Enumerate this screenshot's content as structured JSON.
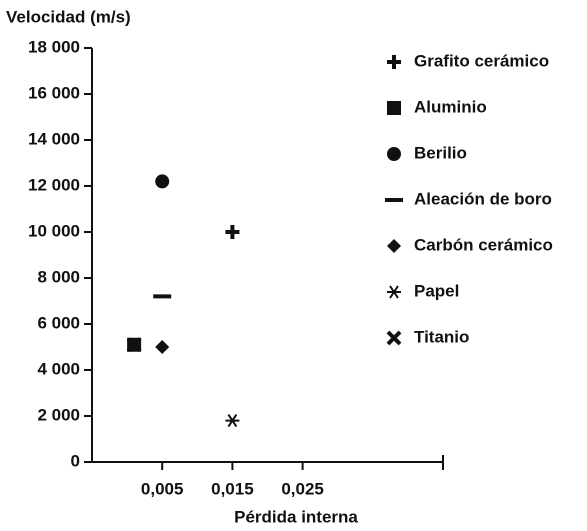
{
  "chart_data": {
    "type": "scatter",
    "y_label": "Velocidad (m/s)",
    "x_label": "Pérdida interna",
    "xlim": [
      -0.005,
      0.045
    ],
    "xticks": [
      {
        "value": 0.005,
        "label": "0,005"
      },
      {
        "value": 0.015,
        "label": "0,015"
      },
      {
        "value": 0.025,
        "label": "0,025"
      }
    ],
    "ylim": [
      0,
      18000
    ],
    "yticks": [
      0,
      {
        "value": 2000,
        "label": "2 000"
      },
      {
        "value": 4000,
        "label": "4 000"
      },
      {
        "value": 6000,
        "label": "6 000"
      },
      {
        "value": 8000,
        "label": "8 000"
      },
      {
        "value": 10000,
        "label": "10 000"
      },
      {
        "value": 12000,
        "label": "12 000"
      },
      {
        "value": 14000,
        "label": "14 000"
      },
      {
        "value": 16000,
        "label": "16 000"
      },
      {
        "value": 18000,
        "label": "18 000"
      }
    ],
    "legend": "right",
    "series": [
      {
        "name": "Grafito cerámico",
        "marker": "plus",
        "color": "#111111",
        "x": [
          0.015
        ],
        "values": [
          10000
        ]
      },
      {
        "name": "Aluminio",
        "marker": "square",
        "color": "#111111",
        "x": [
          0.001
        ],
        "values": [
          5100
        ]
      },
      {
        "name": "Berilio",
        "marker": "circle",
        "color": "#111111",
        "x": [
          0.005
        ],
        "values": [
          12200
        ]
      },
      {
        "name": "Aleación de boro",
        "marker": "dash",
        "color": "#111111",
        "x": [
          0.005
        ],
        "values": [
          7200
        ]
      },
      {
        "name": "Carbón cerámico",
        "marker": "diamond",
        "color": "#111111",
        "x": [
          0.005
        ],
        "values": [
          5000
        ]
      },
      {
        "name": "Papel",
        "marker": "asterisk",
        "color": "#111111",
        "x": [
          0.015
        ],
        "values": [
          1800
        ]
      },
      {
        "name": "Titanio",
        "marker": "cross",
        "color": "#111111",
        "x": [
          0.001
        ],
        "values": [
          5100
        ]
      }
    ]
  }
}
